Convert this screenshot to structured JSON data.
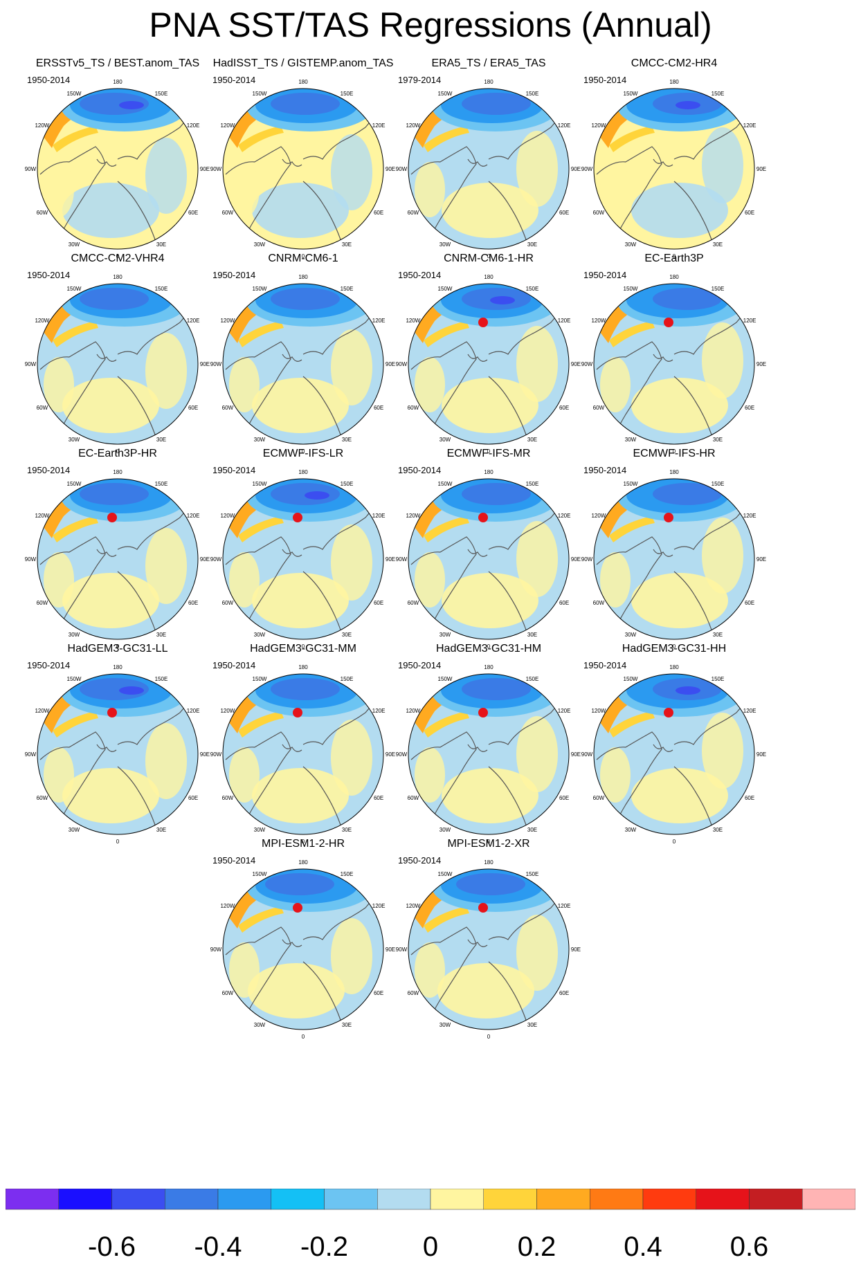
{
  "title": "PNA SST/TAS Regressions (Annual)",
  "longitude_labels": [
    "180",
    "150E",
    "120E",
    "90E",
    "60E",
    "30E",
    "0",
    "30W",
    "60W",
    "90W",
    "120W",
    "150W"
  ],
  "panels": [
    {
      "title": "ERSSTv5_TS / BEST.anom_TAS",
      "period": "1950-2014"
    },
    {
      "title": "HadISST_TS / GISTEMP.anom_TAS",
      "period": "1950-2014"
    },
    {
      "title": "ERA5_TS / ERA5_TAS",
      "period": "1979-2014"
    },
    {
      "title": "CMCC-CM2-HR4",
      "period": "1950-2014"
    },
    {
      "title": "CMCC-CM2-VHR4",
      "period": "1950-2014"
    },
    {
      "title": "CNRM-CM6-1",
      "period": "1950-2014"
    },
    {
      "title": "CNRM-CM6-1-HR",
      "period": "1950-2014"
    },
    {
      "title": "EC-Earth3P",
      "period": "1950-2014"
    },
    {
      "title": "EC-Earth3P-HR",
      "period": "1950-2014"
    },
    {
      "title": "ECMWF-IFS-LR",
      "period": "1950-2014"
    },
    {
      "title": "ECMWF-IFS-MR",
      "period": "1950-2014"
    },
    {
      "title": "ECMWF-IFS-HR",
      "period": "1950-2014"
    },
    {
      "title": "HadGEM3-GC31-LL",
      "period": "1950-2014"
    },
    {
      "title": "HadGEM3-GC31-MM",
      "period": "1950-2014"
    },
    {
      "title": "HadGEM3-GC31-HM",
      "period": "1950-2014"
    },
    {
      "title": "HadGEM3-GC31-HH",
      "period": "1950-2014"
    },
    {
      "title": "MPI-ESM1-2-HR",
      "period": "1950-2014"
    },
    {
      "title": "MPI-ESM1-2-XR",
      "period": "1950-2014"
    }
  ],
  "chart_data": {
    "type": "heatmap",
    "projection": "north polar stereographic",
    "colorbar": {
      "colors": [
        "#7c2ef0",
        "#1a0fff",
        "#3b4ef0",
        "#3a7be6",
        "#2b9af0",
        "#14c0f5",
        "#6cc4f2",
        "#b3dcf0",
        "#fff5a0",
        "#ffd43a",
        "#ffaa20",
        "#ff7a14",
        "#ff3b0f",
        "#e6131a",
        "#c41e22",
        "#ffb4b4"
      ],
      "boundaries": [
        -0.7,
        -0.6,
        -0.5,
        -0.4,
        -0.3,
        -0.2,
        -0.1,
        0,
        0.1,
        0.2,
        0.3,
        0.4,
        0.5,
        0.6,
        0.7
      ],
      "tick_labels": [
        "-0.6",
        "-0.4",
        "-0.2",
        "0",
        "0.2",
        "0.4",
        "0.6"
      ],
      "tick_values": [
        -0.6,
        -0.4,
        -0.2,
        0,
        0.2,
        0.4,
        0.6
      ]
    },
    "field_note": "Regression of annual SST/TAS on the PNA index: negative North Pacific center (about -0.4 to -0.6), positive band along the North American west coast (about 0.2 to 0.5), weak values elsewhere."
  }
}
